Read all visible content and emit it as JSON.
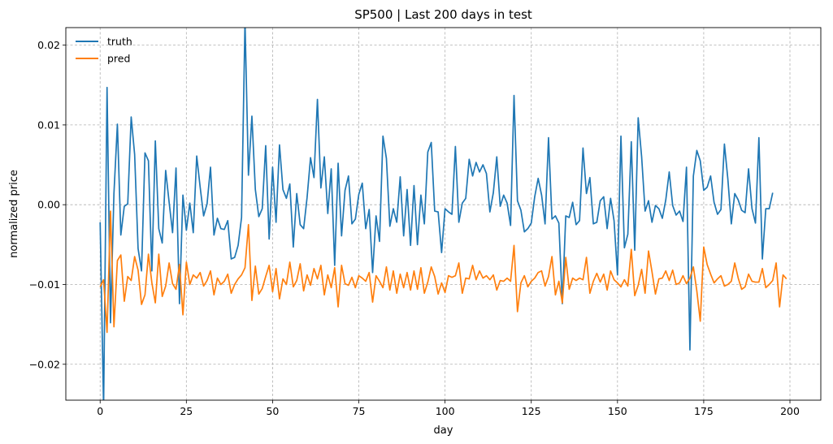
{
  "chart_data": {
    "type": "line",
    "title": "SP500 | Last 200 days in test",
    "xlabel": "day",
    "ylabel": "normalized price",
    "xlim": [
      -9.95,
      208.95
    ],
    "ylim": [
      -0.0245,
      0.0222
    ],
    "xticks": [
      0,
      25,
      50,
      75,
      100,
      125,
      150,
      175,
      200
    ],
    "xtick_labels": [
      "0",
      "25",
      "50",
      "75",
      "100",
      "125",
      "150",
      "175",
      "200"
    ],
    "yticks": [
      -0.02,
      -0.01,
      0.0,
      0.01,
      0.02
    ],
    "ytick_labels": [
      "−0.02",
      "−0.01",
      "0.00",
      "0.01",
      "0.02"
    ],
    "grid": true,
    "legend_position": "top-left",
    "series": [
      {
        "name": "truth",
        "color": "#1f77b4",
        "x_start": 0,
        "values": [
          -0.0022,
          -0.0255,
          0.0147,
          -0.0148,
          0.0014,
          0.0101,
          -0.0038,
          -0.0002,
          0.0001,
          0.011,
          0.0063,
          -0.0055,
          -0.0083,
          0.0065,
          0.0055,
          -0.0083,
          0.008,
          -0.003,
          -0.0048,
          0.0043,
          0.0003,
          -0.0035,
          0.0046,
          -0.0124,
          0.0012,
          -0.0032,
          0.0002,
          -0.0035,
          0.0061,
          0.0022,
          -0.0014,
          0.0001,
          0.0047,
          -0.0038,
          -0.0017,
          -0.003,
          -0.0031,
          -0.002,
          -0.0068,
          -0.0066,
          -0.0051,
          -0.0016,
          0.023,
          0.0037,
          0.0111,
          0.0019,
          -0.0015,
          -0.0005,
          0.0074,
          -0.0043,
          0.0047,
          -0.0022,
          0.0075,
          0.0019,
          0.0008,
          0.0026,
          -0.0053,
          0.0014,
          -0.0025,
          -0.003,
          0.0009,
          0.0059,
          0.0034,
          0.0132,
          0.0021,
          0.006,
          -0.0011,
          0.0045,
          -0.0076,
          0.0052,
          -0.0039,
          0.0018,
          0.0036,
          -0.0024,
          -0.0018,
          0.0013,
          0.0027,
          -0.003,
          -0.0006,
          -0.0085,
          -0.0014,
          -0.0046,
          0.0086,
          0.0058,
          -0.0027,
          -0.0005,
          -0.0022,
          0.0035,
          -0.0039,
          0.0019,
          -0.0051,
          0.0024,
          -0.005,
          0.0012,
          -0.0024,
          0.0066,
          0.0078,
          -0.0008,
          -0.0009,
          -0.006,
          -0.0005,
          -0.0009,
          -0.0012,
          0.0073,
          -0.0022,
          0.0002,
          0.0008,
          0.0057,
          0.0036,
          0.0053,
          0.0041,
          0.005,
          0.0039,
          -0.0009,
          0.0015,
          0.006,
          -0.0002,
          0.0012,
          0.0002,
          -0.0026,
          0.0137,
          0.0005,
          -0.0007,
          -0.0034,
          -0.003,
          -0.0023,
          0.001,
          0.0033,
          0.0012,
          -0.0024,
          0.0084,
          -0.0018,
          -0.0014,
          -0.0023,
          -0.0124,
          -0.0014,
          -0.0016,
          0.0003,
          -0.0025,
          -0.002,
          0.0071,
          0.0014,
          0.0034,
          -0.0024,
          -0.0022,
          0.0005,
          0.001,
          -0.003,
          0.0008,
          -0.002,
          -0.0088,
          0.0086,
          -0.0054,
          -0.0037,
          0.0079,
          -0.0057,
          0.0109,
          0.006,
          -0.0008,
          0.0005,
          -0.0022,
          -0.0001,
          -0.0005,
          -0.0017,
          0.0006,
          0.0041,
          -0.0001,
          -0.0013,
          -0.0008,
          -0.0021,
          0.0047,
          -0.0182,
          0.0036,
          0.0068,
          0.0055,
          0.0018,
          0.0022,
          0.0036,
          0.0003,
          -0.0012,
          -0.0006,
          0.0076,
          0.0032,
          -0.0024,
          0.0014,
          0.0006,
          -0.0007,
          -0.001,
          0.0045,
          -0.0005,
          -0.0023,
          0.0084,
          -0.0068,
          -0.0005,
          -0.0005,
          0.0015
        ]
      },
      {
        "name": "pred",
        "color": "#ff7f0e",
        "x_start": 0,
        "values": [
          -0.0103,
          -0.0094,
          -0.016,
          -0.0008,
          -0.0153,
          -0.007,
          -0.0063,
          -0.0121,
          -0.009,
          -0.0095,
          -0.0065,
          -0.0082,
          -0.0125,
          -0.0113,
          -0.0062,
          -0.0098,
          -0.0123,
          -0.0062,
          -0.0115,
          -0.0102,
          -0.0073,
          -0.0099,
          -0.0106,
          -0.0075,
          -0.0138,
          -0.0072,
          -0.01,
          -0.0088,
          -0.0092,
          -0.0085,
          -0.0102,
          -0.0095,
          -0.0083,
          -0.0113,
          -0.0092,
          -0.01,
          -0.0096,
          -0.0087,
          -0.0111,
          -0.01,
          -0.0093,
          -0.0088,
          -0.0079,
          -0.0025,
          -0.012,
          -0.0077,
          -0.0112,
          -0.0105,
          -0.009,
          -0.0076,
          -0.0109,
          -0.008,
          -0.0118,
          -0.0093,
          -0.01,
          -0.0072,
          -0.0103,
          -0.0095,
          -0.0074,
          -0.0108,
          -0.0088,
          -0.0101,
          -0.008,
          -0.0093,
          -0.0076,
          -0.0113,
          -0.0088,
          -0.0104,
          -0.0079,
          -0.0128,
          -0.0076,
          -0.0099,
          -0.0101,
          -0.0091,
          -0.0104,
          -0.0089,
          -0.0092,
          -0.0096,
          -0.0085,
          -0.0122,
          -0.0089,
          -0.0096,
          -0.0104,
          -0.0078,
          -0.0107,
          -0.0083,
          -0.0111,
          -0.0087,
          -0.0104,
          -0.0085,
          -0.0107,
          -0.0083,
          -0.0106,
          -0.0079,
          -0.0111,
          -0.0097,
          -0.0078,
          -0.009,
          -0.0112,
          -0.0098,
          -0.011,
          -0.0089,
          -0.0091,
          -0.0089,
          -0.0073,
          -0.0111,
          -0.0092,
          -0.0093,
          -0.0076,
          -0.0094,
          -0.0083,
          -0.0092,
          -0.0089,
          -0.0094,
          -0.0088,
          -0.0107,
          -0.0095,
          -0.0096,
          -0.0092,
          -0.0096,
          -0.0051,
          -0.0134,
          -0.0098,
          -0.0089,
          -0.0103,
          -0.0096,
          -0.0092,
          -0.0085,
          -0.0083,
          -0.0102,
          -0.009,
          -0.0065,
          -0.0113,
          -0.0096,
          -0.0123,
          -0.0066,
          -0.0106,
          -0.0092,
          -0.0095,
          -0.0092,
          -0.0094,
          -0.0066,
          -0.0111,
          -0.0096,
          -0.0086,
          -0.0097,
          -0.0087,
          -0.0107,
          -0.0083,
          -0.0094,
          -0.0098,
          -0.0103,
          -0.0094,
          -0.0102,
          -0.0056,
          -0.0114,
          -0.0101,
          -0.0081,
          -0.0111,
          -0.0058,
          -0.0084,
          -0.0112,
          -0.0093,
          -0.0092,
          -0.0083,
          -0.0095,
          -0.0082,
          -0.01,
          -0.0098,
          -0.0089,
          -0.0099,
          -0.0092,
          -0.0078,
          -0.0108,
          -0.0146,
          -0.0053,
          -0.0075,
          -0.0087,
          -0.0098,
          -0.0093,
          -0.0089,
          -0.0102,
          -0.01,
          -0.0096,
          -0.0073,
          -0.0092,
          -0.0106,
          -0.0103,
          -0.0087,
          -0.0096,
          -0.0097,
          -0.0097,
          -0.008,
          -0.0104,
          -0.01,
          -0.0095,
          -0.0073,
          -0.0128,
          -0.0088,
          -0.0093
        ]
      }
    ]
  }
}
